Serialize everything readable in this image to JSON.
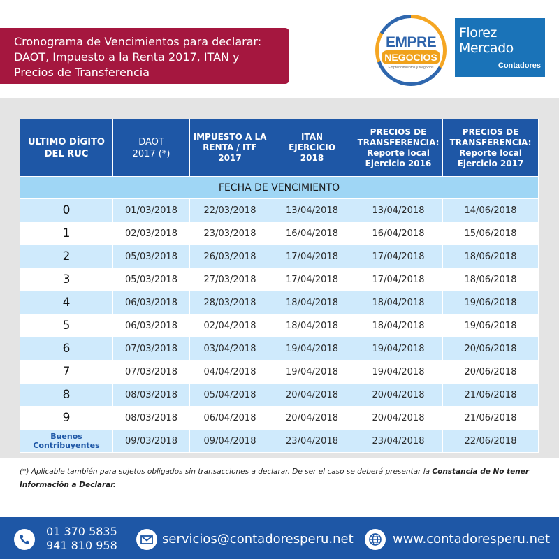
{
  "header": {
    "title_lines": [
      "Cronograma de Vencimientos para declarar:",
      "DAOT, Impuesto a la Renta 2017, ITAN y",
      "Precios de Transferencia"
    ],
    "logo_empre": {
      "top": "EMPRE",
      "bottom": "NEGOCIOS",
      "tagline": "Emprendimientos y Negocios"
    },
    "logo_florez": {
      "line1": "Florez",
      "line2": "Mercado",
      "line3": "Contadores"
    }
  },
  "table": {
    "headers": [
      [
        "ULTIMO DÍGITO",
        "DEL RUC"
      ],
      [
        "DAOT",
        "2017 (*)"
      ],
      [
        "IMPUESTO A  LA",
        "RENTA / ITF",
        "2017"
      ],
      [
        "ITAN",
        "EJERCICIO",
        "2018"
      ],
      [
        "PRECIOS DE",
        "TRANSFERENCIA:",
        "Reporte local",
        "Ejercicio 2016"
      ],
      [
        "PRECIOS DE",
        "TRANSFERENCIA:",
        "Reporte local",
        "Ejercicio 2017"
      ]
    ],
    "section_label": "FECHA DE VENCIMIENTO",
    "rows": [
      {
        "digit": "0",
        "daot": "01/03/2018",
        "renta": "22/03/2018",
        "itan": "13/04/2018",
        "pt2016": "13/04/2018",
        "pt2017": "14/06/2018"
      },
      {
        "digit": "1",
        "daot": "02/03/2018",
        "renta": "23/03/2018",
        "itan": "16/04/2018",
        "pt2016": "16/04/2018",
        "pt2017": "15/06/2018"
      },
      {
        "digit": "2",
        "daot": "05/03/2018",
        "renta": "26/03/2018",
        "itan": "17/04/2018",
        "pt2016": "17/04/2018",
        "pt2017": "18/06/2018"
      },
      {
        "digit": "3",
        "daot": "05/03/2018",
        "renta": "27/03/2018",
        "itan": "17/04/2018",
        "pt2016": "17/04/2018",
        "pt2017": "18/06/2018"
      },
      {
        "digit": "4",
        "daot": "06/03/2018",
        "renta": "28/03/2018",
        "itan": "18/04/2018",
        "pt2016": "18/04/2018",
        "pt2017": "19/06/2018"
      },
      {
        "digit": "5",
        "daot": "06/03/2018",
        "renta": "02/04/2018",
        "itan": "18/04/2018",
        "pt2016": "18/04/2018",
        "pt2017": "19/06/2018"
      },
      {
        "digit": "6",
        "daot": "07/03/2018",
        "renta": "03/04/2018",
        "itan": "19/04/2018",
        "pt2016": "19/04/2018",
        "pt2017": "20/06/2018"
      },
      {
        "digit": "7",
        "daot": "07/03/2018",
        "renta": "04/04/2018",
        "itan": "19/04/2018",
        "pt2016": "19/04/2018",
        "pt2017": "20/06/2018"
      },
      {
        "digit": "8",
        "daot": "08/03/2018",
        "renta": "05/04/2018",
        "itan": "20/04/2018",
        "pt2016": "20/04/2018",
        "pt2017": "21/06/2018"
      },
      {
        "digit": "9",
        "daot": "08/03/2018",
        "renta": "06/04/2018",
        "itan": "20/04/2018",
        "pt2016": "20/04/2018",
        "pt2017": "21/06/2018"
      }
    ],
    "good_row": {
      "label_lines": [
        "Buenos",
        "Contribuyentes"
      ],
      "daot": "09/03/2018",
      "renta": "09/04/2018",
      "itan": "23/04/2018",
      "pt2016": "23/04/2018",
      "pt2017": "22/06/2018"
    }
  },
  "footnote": {
    "text": "(*) Aplicable también para sujetos obligados sin transacciones a declarar. De ser el caso se deberá presentar la ",
    "bold": "Constancia de No tener Información a Declarar."
  },
  "footer": {
    "phone_1": "01 370 5835",
    "phone_2": "941 810 958",
    "email": "servicios@contadoresperu.net",
    "website": "www.contadoresperu.net",
    "icons": [
      "phone-icon",
      "mail-icon",
      "globe-icon"
    ]
  },
  "colors": {
    "title_banner": "#a5173f",
    "header_blue": "#1e57a6",
    "section_blue": "#9fd6f5",
    "row_light_blue": "#cfeafc",
    "panel_gray": "#e4e4e4"
  }
}
